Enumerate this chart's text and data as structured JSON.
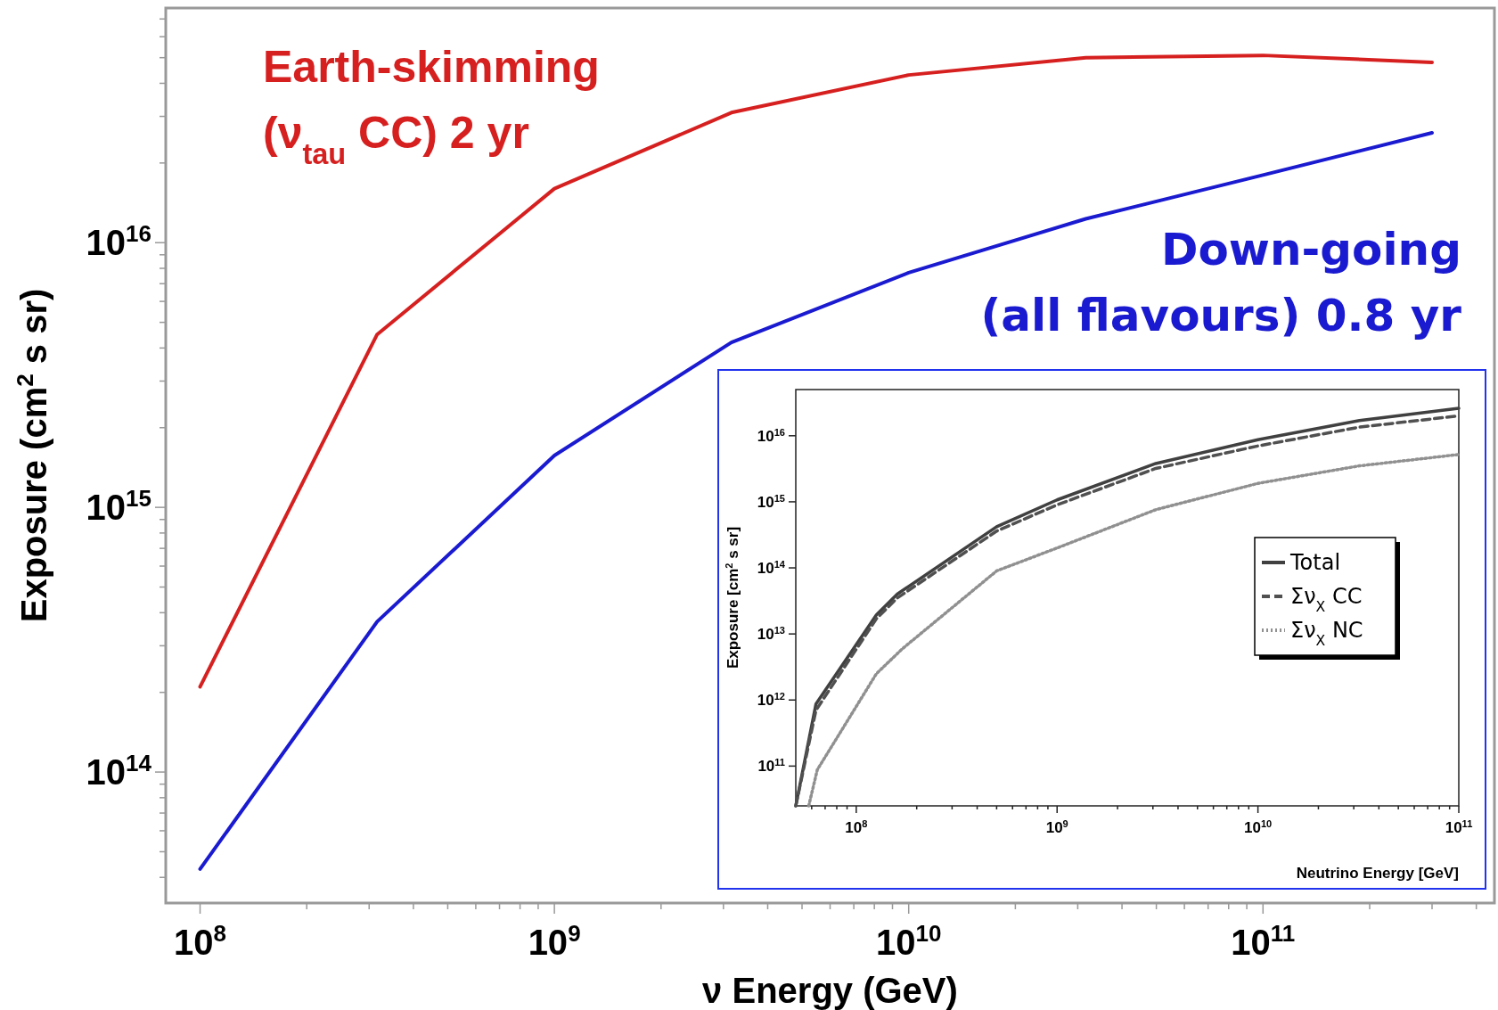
{
  "chart_data": [
    {
      "type": "line",
      "xlabel": "ν Energy (GeV)",
      "ylabel": "Exposure (cm$^{2}$ s sr)",
      "log": "xy",
      "grid": false,
      "legend": false,
      "xlim": [
        80000000.0,
        450000000000.0
      ],
      "ylim": [
        32000000000000.0,
        7.7e+16
      ],
      "xticks": [
        {
          "value": 100000000.0,
          "label": "10$^{8}$"
        },
        {
          "value": 200000000.0,
          "label": null
        },
        {
          "value": 300000000.0,
          "label": null
        },
        {
          "value": 400000000.0,
          "label": null
        },
        {
          "value": 500000000.0,
          "label": null
        },
        {
          "value": 600000000.0,
          "label": null
        },
        {
          "value": 700000000.0,
          "label": null
        },
        {
          "value": 800000000.0,
          "label": null
        },
        {
          "value": 900000000.0,
          "label": null
        },
        {
          "value": 1000000000.0,
          "label": "10$^{9}$"
        },
        {
          "value": 2000000000.0,
          "label": null
        },
        {
          "value": 3000000000.0,
          "label": null
        },
        {
          "value": 4000000000.0,
          "label": null
        },
        {
          "value": 5000000000.0,
          "label": null
        },
        {
          "value": 6000000000.0,
          "label": null
        },
        {
          "value": 7000000000.0,
          "label": null
        },
        {
          "value": 8000000000.0,
          "label": null
        },
        {
          "value": 9000000000.0,
          "label": null
        },
        {
          "value": 10000000000.0,
          "label": "10$^{10}$"
        },
        {
          "value": 20000000000.0,
          "label": null
        },
        {
          "value": 30000000000.0,
          "label": null
        },
        {
          "value": 40000000000.0,
          "label": null
        },
        {
          "value": 50000000000.0,
          "label": null
        },
        {
          "value": 60000000000.0,
          "label": null
        },
        {
          "value": 70000000000.0,
          "label": null
        },
        {
          "value": 80000000000.0,
          "label": null
        },
        {
          "value": 90000000000.0,
          "label": null
        },
        {
          "value": 100000000000.0,
          "label": "10$^{11}$"
        },
        {
          "value": 200000000000.0,
          "label": null
        },
        {
          "value": 300000000000.0,
          "label": null
        },
        {
          "value": 400000000000.0,
          "label": null
        }
      ],
      "yticks": [
        {
          "value": 40000000000000.0,
          "label": null
        },
        {
          "value": 50000000000000.0,
          "label": null
        },
        {
          "value": 60000000000000.0,
          "label": null
        },
        {
          "value": 70000000000000.0,
          "label": null
        },
        {
          "value": 80000000000000.0,
          "label": null
        },
        {
          "value": 90000000000000.0,
          "label": null
        },
        {
          "value": 100000000000000.0,
          "label": "10$^{14}$"
        },
        {
          "value": 200000000000000.0,
          "label": null
        },
        {
          "value": 300000000000000.0,
          "label": null
        },
        {
          "value": 400000000000000.0,
          "label": null
        },
        {
          "value": 500000000000000.0,
          "label": null
        },
        {
          "value": 600000000000000.0,
          "label": null
        },
        {
          "value": 700000000000000.0,
          "label": null
        },
        {
          "value": 800000000000000.0,
          "label": null
        },
        {
          "value": 900000000000000.0,
          "label": null
        },
        {
          "value": 1000000000000000.0,
          "label": "10$^{15}$"
        },
        {
          "value": 2000000000000000.0,
          "label": null
        },
        {
          "value": 3000000000000000.0,
          "label": null
        },
        {
          "value": 4000000000000000.0,
          "label": null
        },
        {
          "value": 5000000000000000.0,
          "label": null
        },
        {
          "value": 6000000000000000.0,
          "label": null
        },
        {
          "value": 7000000000000000.0,
          "label": null
        },
        {
          "value": 8000000000000000.0,
          "label": null
        },
        {
          "value": 9000000000000000.0,
          "label": null
        },
        {
          "value": 1e+16,
          "label": "10$^{16}$"
        },
        {
          "value": 2e+16,
          "label": null
        },
        {
          "value": 3e+16,
          "label": null
        },
        {
          "value": 4e+16,
          "label": null
        },
        {
          "value": 5e+16,
          "label": null
        },
        {
          "value": 6e+16,
          "label": null
        },
        {
          "value": 7e+16,
          "label": null
        }
      ],
      "x": [
        100000000.0,
        316000000.0,
        1000000000.0,
        3160000000.0,
        10000000000.0,
        31600000000.0,
        100000000000.0,
        300000000000.0
      ],
      "series": [
        {
          "name": "Earth-skimming (ν$_{tau}$ CC) 2 yr",
          "color": "#d62020",
          "values": [
            210000000000000.0,
            4500000000000000.0,
            1.6e+16,
            3.1e+16,
            4.3e+16,
            5e+16,
            5.1e+16,
            4.8e+16
          ]
        },
        {
          "name": "Down-going (all flavours) 0.8 yr",
          "color": "#1a1ad0",
          "values": [
            43000000000000.0,
            370000000000000.0,
            1570000000000000.0,
            4200000000000000.0,
            7700000000000000.0,
            1.23e+16,
            1.8e+16,
            2.6e+16
          ]
        }
      ]
    },
    {
      "type": "line",
      "xlabel": "Neutrino Energy [GeV]",
      "ylabel": "Exposure [cm$^{2}$ s sr]",
      "log": "xy",
      "grid": false,
      "legend": "right",
      "xlim": [
        50000000.0,
        100000000000.0
      ],
      "ylim": [
        25000000000.0,
        5e+16
      ],
      "xticks": [
        {
          "value": 60000000.0,
          "label": null
        },
        {
          "value": 70000000.0,
          "label": null
        },
        {
          "value": 80000000.0,
          "label": null
        },
        {
          "value": 90000000.0,
          "label": null
        },
        {
          "value": 100000000.0,
          "label": "10$^{8}$"
        },
        {
          "value": 200000000.0,
          "label": null
        },
        {
          "value": 300000000.0,
          "label": null
        },
        {
          "value": 400000000.0,
          "label": null
        },
        {
          "value": 500000000.0,
          "label": null
        },
        {
          "value": 600000000.0,
          "label": null
        },
        {
          "value": 700000000.0,
          "label": null
        },
        {
          "value": 800000000.0,
          "label": null
        },
        {
          "value": 900000000.0,
          "label": null
        },
        {
          "value": 1000000000.0,
          "label": "10$^{9}$"
        },
        {
          "value": 2000000000.0,
          "label": null
        },
        {
          "value": 3000000000.0,
          "label": null
        },
        {
          "value": 4000000000.0,
          "label": null
        },
        {
          "value": 5000000000.0,
          "label": null
        },
        {
          "value": 6000000000.0,
          "label": null
        },
        {
          "value": 7000000000.0,
          "label": null
        },
        {
          "value": 8000000000.0,
          "label": null
        },
        {
          "value": 9000000000.0,
          "label": null
        },
        {
          "value": 10000000000.0,
          "label": "10$^{10}$"
        },
        {
          "value": 20000000000.0,
          "label": null
        },
        {
          "value": 30000000000.0,
          "label": null
        },
        {
          "value": 40000000000.0,
          "label": null
        },
        {
          "value": 50000000000.0,
          "label": null
        },
        {
          "value": 60000000000.0,
          "label": null
        },
        {
          "value": 70000000000.0,
          "label": null
        },
        {
          "value": 80000000000.0,
          "label": null
        },
        {
          "value": 90000000000.0,
          "label": null
        },
        {
          "value": 100000000000.0,
          "label": "10$^{11}$"
        }
      ],
      "yticks": [
        {
          "value": 100000000000.0,
          "label": "10$^{11}$"
        },
        {
          "value": 1000000000000.0,
          "label": "10$^{12}$"
        },
        {
          "value": 10000000000000.0,
          "label": "10$^{13}$"
        },
        {
          "value": 100000000000000.0,
          "label": "10$^{14}$"
        },
        {
          "value": 1000000000000000.0,
          "label": "10$^{15}$"
        },
        {
          "value": 1e+16,
          "label": "10$^{16}$"
        }
      ],
      "series": [
        {
          "name": "Total",
          "color": "#404040",
          "line_style": "solid",
          "x": [
            50000000.0,
            63000000.0,
            126000000.0,
            160000000.0,
            500000000.0,
            1000000000.0,
            3100000000.0,
            10000000000.0,
            32000000000.0,
            100000000000.0
          ],
          "values": [
            25000000000.0,
            870000000000.0,
            19500000000000.0,
            40000000000000.0,
            420000000000000.0,
            1070000000000000.0,
            3800000000000000.0,
            8700000000000000.0,
            1.7e+16,
            2.6e+16
          ]
        },
        {
          "name": "Σν$_{X}$ CC",
          "color": "#505050",
          "line_style": "dashed",
          "x": [
            50000000.0,
            63000000.0,
            126000000.0,
            160000000.0,
            500000000.0,
            1000000000.0,
            3100000000.0,
            10000000000.0,
            32000000000.0,
            100000000000.0
          ],
          "values": [
            25000000000.0,
            700000000000.0,
            17000000000000.0,
            35000000000000.0,
            360000000000000.0,
            900000000000000.0,
            3200000000000000.0,
            7000000000000000.0,
            1.35e+16,
            2e+16
          ]
        },
        {
          "name": "Σν$_{X}$ NC",
          "color": "#909090",
          "line_style": "dotted",
          "x": [
            58000000.0,
            64000000.0,
            126000000.0,
            170000000.0,
            500000000.0,
            1000000000.0,
            3100000000.0,
            10000000000.0,
            32000000000.0,
            100000000000.0
          ],
          "values": [
            25000000000.0,
            88000000000.0,
            2500000000000.0,
            6000000000000.0,
            90000000000000.0,
            200000000000000.0,
            760000000000000.0,
            1900000000000000.0,
            3500000000000000.0,
            5200000000000000.0
          ]
        }
      ]
    }
  ]
}
